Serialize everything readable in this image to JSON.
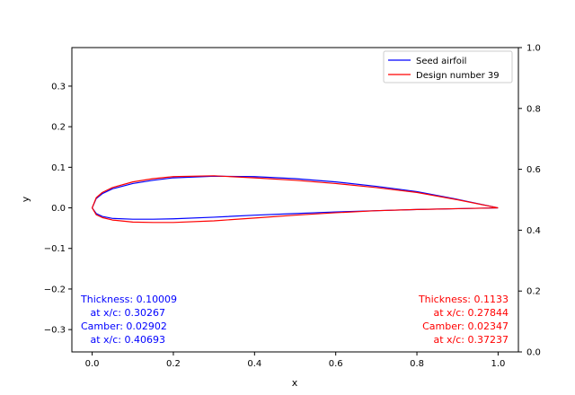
{
  "chart_data": {
    "type": "line",
    "xlabel": "x",
    "ylabel": "y",
    "xlim": [
      -0.05,
      1.05
    ],
    "ylim": [
      -0.355,
      0.395
    ],
    "y2lim": [
      0.0,
      1.0
    ],
    "xticks": [
      "0.0",
      "0.2",
      "0.4",
      "0.6",
      "0.8",
      "1.0"
    ],
    "xtick_values": [
      0.0,
      0.2,
      0.4,
      0.6,
      0.8,
      1.0
    ],
    "yticks": [
      "0.3",
      "0.2",
      "0.1",
      "0.0",
      "−0.1",
      "−0.2",
      "−0.3"
    ],
    "ytick_values": [
      0.3,
      0.2,
      0.1,
      0.0,
      -0.1,
      -0.2,
      -0.3
    ],
    "y2ticks": [
      "1.0",
      "0.8",
      "0.6",
      "0.4",
      "0.2",
      "0.0"
    ],
    "y2tick_values": [
      1.0,
      0.8,
      0.6,
      0.4,
      0.2,
      0.0
    ],
    "grid": false,
    "legend_position": "top-right",
    "series": [
      {
        "name": "Seed airfoil",
        "color": "#0000ff",
        "x": [
          1.0,
          0.9,
          0.8,
          0.7,
          0.6,
          0.5,
          0.4,
          0.3,
          0.2,
          0.15,
          0.1,
          0.05,
          0.025,
          0.01,
          0.0,
          0.01,
          0.025,
          0.05,
          0.1,
          0.15,
          0.2,
          0.3,
          0.4,
          0.5,
          0.6,
          0.7,
          0.8,
          0.9,
          1.0
        ],
        "y": [
          0.0,
          0.021,
          0.04,
          0.053,
          0.064,
          0.072,
          0.077,
          0.078,
          0.074,
          0.068,
          0.06,
          0.047,
          0.035,
          0.023,
          0.0,
          -0.014,
          -0.021,
          -0.026,
          -0.028,
          -0.028,
          -0.027,
          -0.023,
          -0.018,
          -0.014,
          -0.01,
          -0.007,
          -0.004,
          -0.002,
          0.0
        ]
      },
      {
        "name": "Design number 39",
        "color": "#ff0000",
        "x": [
          1.0,
          0.9,
          0.8,
          0.7,
          0.6,
          0.5,
          0.4,
          0.3,
          0.2,
          0.15,
          0.1,
          0.05,
          0.025,
          0.01,
          0.0,
          0.01,
          0.025,
          0.05,
          0.1,
          0.15,
          0.2,
          0.3,
          0.4,
          0.5,
          0.6,
          0.7,
          0.8,
          0.9,
          1.0
        ],
        "y": [
          0.0,
          0.02,
          0.038,
          0.05,
          0.06,
          0.068,
          0.074,
          0.079,
          0.077,
          0.072,
          0.064,
          0.05,
          0.038,
          0.025,
          0.0,
          -0.017,
          -0.024,
          -0.03,
          -0.035,
          -0.036,
          -0.036,
          -0.032,
          -0.025,
          -0.018,
          -0.012,
          -0.007,
          -0.004,
          -0.002,
          0.0
        ]
      }
    ],
    "annotations": {
      "seed": {
        "color": "#0000ff",
        "lines": [
          "Thickness: 0.10009",
          "   at x/c: 0.30267",
          "Camber: 0.02902",
          "   at x/c: 0.40693"
        ]
      },
      "design": {
        "color": "#ff0000",
        "lines": [
          "Thickness: 0.1133",
          "at x/c: 0.27844",
          "Camber: 0.02347",
          "at x/c: 0.37237"
        ]
      }
    }
  }
}
